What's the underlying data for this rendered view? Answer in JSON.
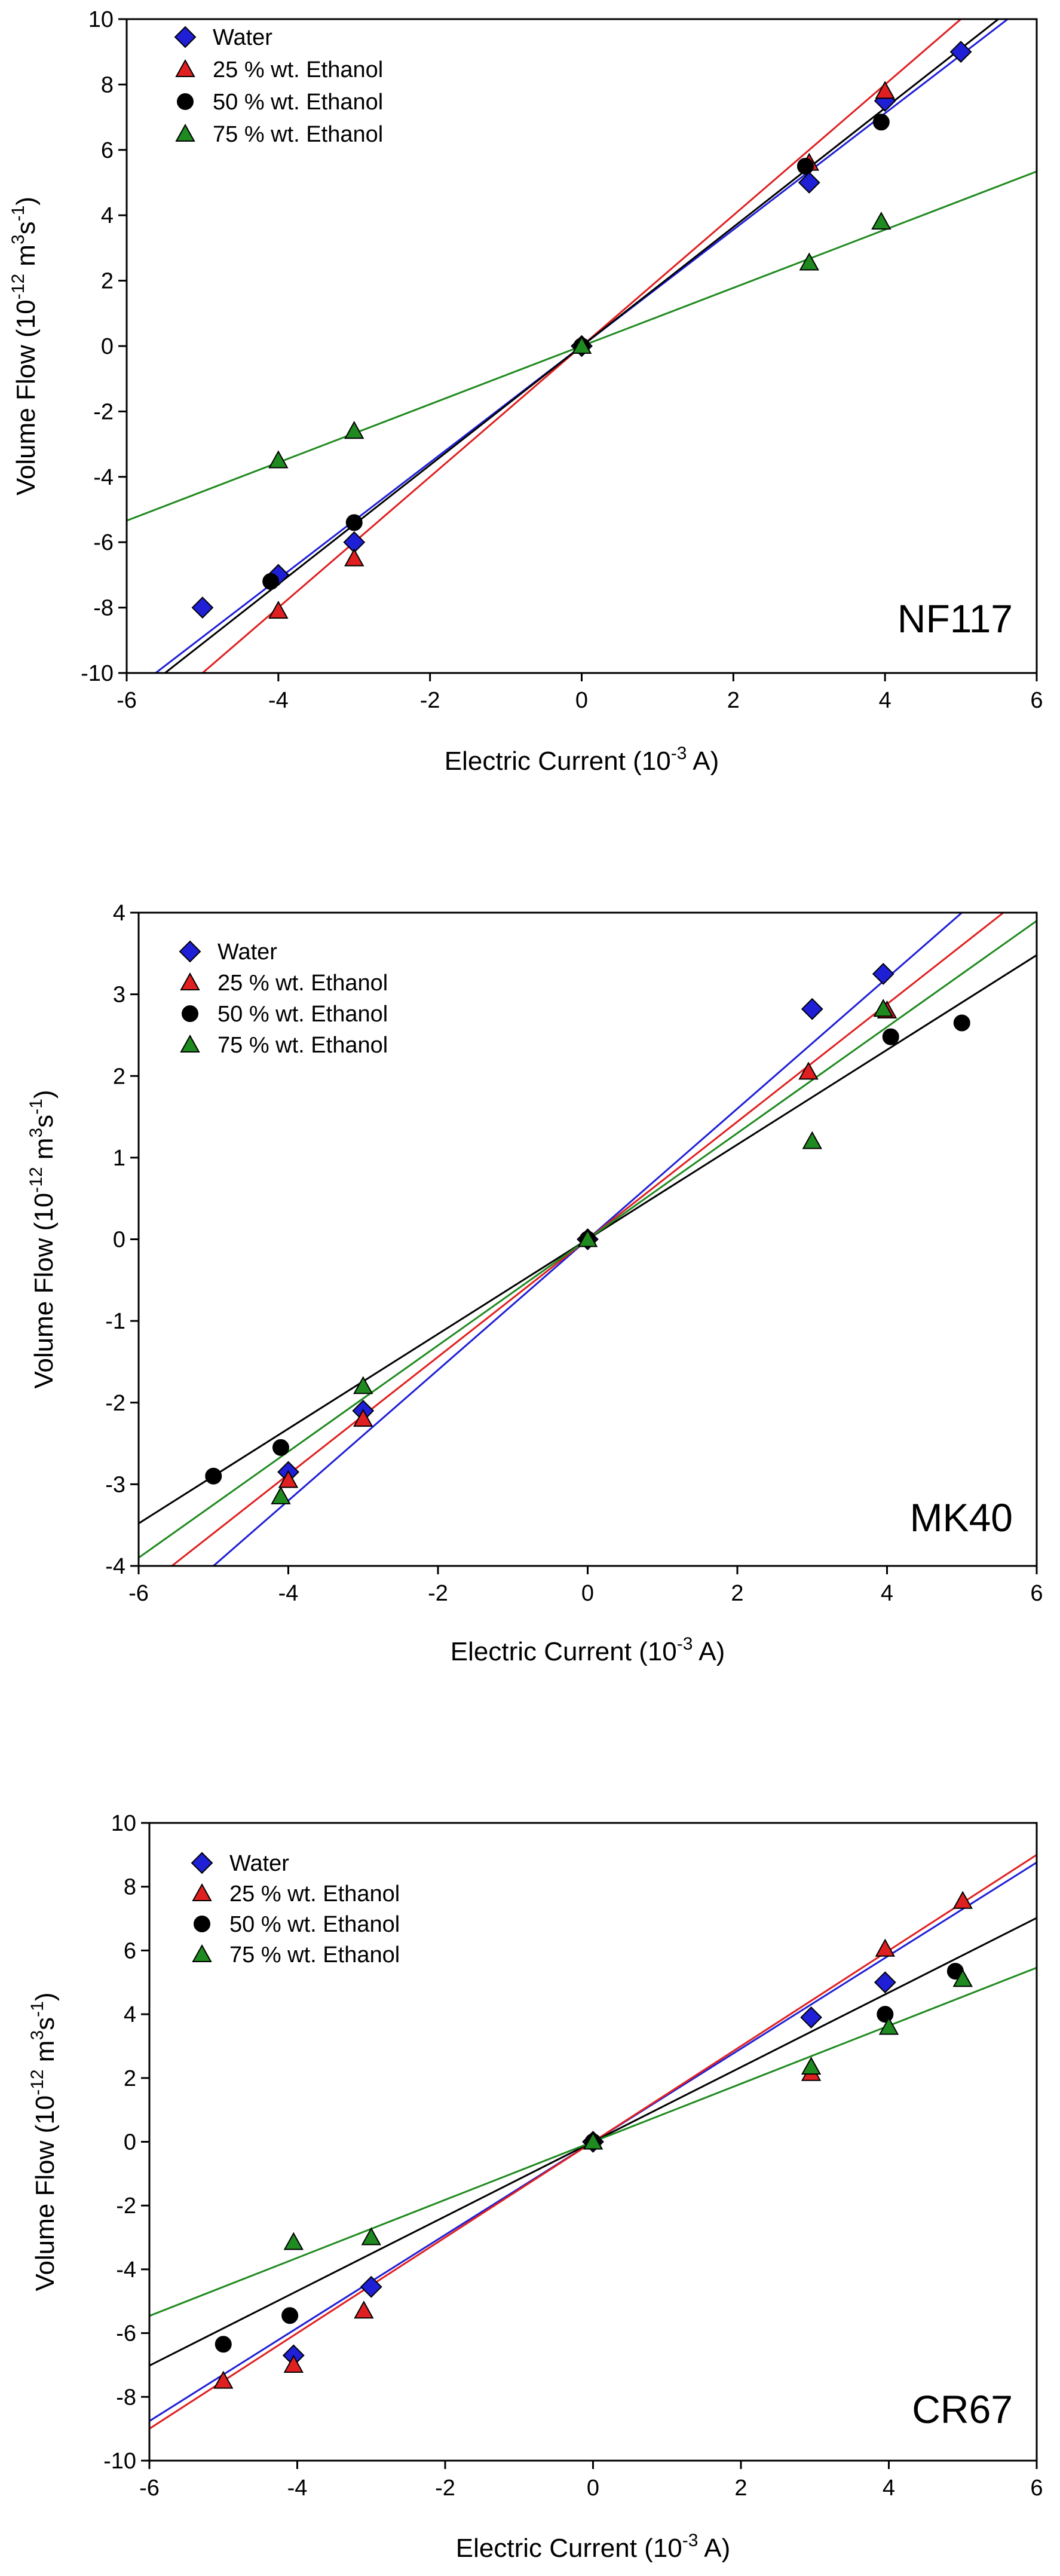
{
  "legend_labels": [
    "Water",
    "25 % wt. Ethanol",
    "50 % wt. Ethanol",
    "75 % wt. Ethanol"
  ],
  "colors": {
    "water": "#1f1fd6",
    "ethanol25": "#e02020",
    "ethanol50": "#000000",
    "ethanol75": "#1f8a1f"
  },
  "chart_data": [
    {
      "type": "scatter",
      "panel_label": "NF117",
      "xlabel": {
        "main": "Electric Current (10",
        "sup": "-3",
        "tail": " A)"
      },
      "ylabel": {
        "main": "Volume Flow (10",
        "sup1": "-12",
        "mid": " m",
        "sup2": "3",
        "mid2": "s",
        "sup3": "-1",
        "tail": ")"
      },
      "xlim": [
        -6,
        6
      ],
      "ylim": [
        -10,
        10
      ],
      "xticks": [
        -6,
        -4,
        -2,
        0,
        2,
        4,
        6
      ],
      "yticks": [
        -10,
        -8,
        -6,
        -4,
        -2,
        0,
        2,
        4,
        6,
        8,
        10
      ],
      "legend_position": "top-left",
      "series": [
        {
          "name": "Water",
          "marker": "diamond",
          "color": "#1f1fd6",
          "slope": 1.78,
          "points": [
            [
              -5,
              -8.0
            ],
            [
              -4,
              -7.0
            ],
            [
              -3,
              -6.0
            ],
            [
              0,
              0
            ],
            [
              3,
              5.0
            ],
            [
              4,
              7.5
            ],
            [
              5,
              9.0
            ]
          ]
        },
        {
          "name": "25 % wt. Ethanol",
          "marker": "triangle",
          "color": "#e02020",
          "slope": 2.0,
          "points": [
            [
              -4,
              -8.1
            ],
            [
              -3,
              -6.5
            ],
            [
              0,
              0
            ],
            [
              3,
              5.6
            ],
            [
              4,
              7.8
            ]
          ]
        },
        {
          "name": "50 % wt. Ethanol",
          "marker": "circle",
          "color": "#000000",
          "slope": 1.82,
          "points": [
            [
              -4.1,
              -7.2
            ],
            [
              -3,
              -5.4
            ],
            [
              0,
              0
            ],
            [
              2.95,
              5.5
            ],
            [
              3.95,
              6.85
            ]
          ]
        },
        {
          "name": "75 % wt. Ethanol",
          "marker": "triangle",
          "color": "#1f8a1f",
          "slope": 0.89,
          "points": [
            [
              -4,
              -3.5
            ],
            [
              -3,
              -2.6
            ],
            [
              0,
              0
            ],
            [
              3,
              2.55
            ],
            [
              3.95,
              3.8
            ]
          ]
        }
      ]
    },
    {
      "type": "scatter",
      "panel_label": "MK40",
      "xlabel": {
        "main": "Electric Current (10",
        "sup": "-3",
        "tail": " A)"
      },
      "ylabel": {
        "main": "Volume Flow (10",
        "sup1": "-12",
        "mid": " m",
        "sup2": "3",
        "mid2": "s",
        "sup3": "-1",
        "tail": ")"
      },
      "xlim": [
        -6,
        6
      ],
      "ylim": [
        -4,
        4
      ],
      "xticks": [
        -6,
        -4,
        -2,
        0,
        2,
        4,
        6
      ],
      "yticks": [
        -4,
        -3,
        -2,
        -1,
        0,
        1,
        2,
        3,
        4
      ],
      "legend_position": "top-left",
      "series": [
        {
          "name": "Water",
          "marker": "diamond",
          "color": "#1f1fd6",
          "slope": 0.8,
          "points": [
            [
              -4,
              -2.85
            ],
            [
              -3,
              -2.1
            ],
            [
              0,
              0
            ],
            [
              3,
              2.82
            ],
            [
              3.95,
              3.25
            ]
          ]
        },
        {
          "name": "25 % wt. Ethanol",
          "marker": "triangle",
          "color": "#e02020",
          "slope": 0.72,
          "points": [
            [
              -4,
              -2.95
            ],
            [
              -3,
              -2.2
            ],
            [
              0,
              0
            ],
            [
              2.95,
              2.05
            ],
            [
              4,
              2.8
            ]
          ]
        },
        {
          "name": "50 % wt. Ethanol",
          "marker": "circle",
          "color": "#000000",
          "slope": 0.58,
          "points": [
            [
              -5,
              -2.9
            ],
            [
              -4.1,
              -2.55
            ],
            [
              0,
              0
            ],
            [
              4.05,
              2.48
            ],
            [
              5,
              2.65
            ]
          ]
        },
        {
          "name": "75 % wt. Ethanol",
          "marker": "triangle",
          "color": "#1f8a1f",
          "slope": 0.65,
          "points": [
            [
              -4.1,
              -3.15
            ],
            [
              -3,
              -1.8
            ],
            [
              0,
              0
            ],
            [
              3,
              1.2
            ],
            [
              3.95,
              2.82
            ]
          ]
        }
      ]
    },
    {
      "type": "scatter",
      "panel_label": "CR67",
      "xlabel": {
        "main": "Electric Current (10",
        "sup": "-3",
        "tail": " A)"
      },
      "ylabel": {
        "main": "Volume Flow (10",
        "sup1": "-12",
        "mid": " m",
        "sup2": "3",
        "mid2": "s",
        "sup3": "-1",
        "tail": ")"
      },
      "xlim": [
        -6,
        6
      ],
      "ylim": [
        -10,
        10
      ],
      "xticks": [
        -6,
        -4,
        -2,
        0,
        2,
        4,
        6
      ],
      "yticks": [
        -10,
        -8,
        -6,
        -4,
        -2,
        0,
        2,
        4,
        6,
        8,
        10
      ],
      "legend_position": "top-left",
      "series": [
        {
          "name": "Water",
          "marker": "diamond",
          "color": "#1f1fd6",
          "slope": 1.46,
          "points": [
            [
              -4.05,
              -6.7
            ],
            [
              -3,
              -4.55
            ],
            [
              0,
              0
            ],
            [
              2.95,
              3.9
            ],
            [
              3.95,
              5.0
            ]
          ]
        },
        {
          "name": "25 % wt. Ethanol",
          "marker": "triangle",
          "color": "#e02020",
          "slope": 1.5,
          "points": [
            [
              -5,
              -7.5
            ],
            [
              -4.05,
              -7.0
            ],
            [
              -3.1,
              -5.3
            ],
            [
              0,
              0
            ],
            [
              2.95,
              2.15
            ],
            [
              3.95,
              6.05
            ],
            [
              5,
              7.55
            ]
          ]
        },
        {
          "name": "50 % wt. Ethanol",
          "marker": "circle",
          "color": "#000000",
          "slope": 1.17,
          "points": [
            [
              -5,
              -6.35
            ],
            [
              -4.1,
              -5.45
            ],
            [
              0,
              0
            ],
            [
              3.95,
              4.0
            ],
            [
              4.9,
              5.35
            ]
          ]
        },
        {
          "name": "75 % wt. Ethanol",
          "marker": "triangle",
          "color": "#1f8a1f",
          "slope": 0.91,
          "points": [
            [
              -4.05,
              -3.15
            ],
            [
              -3,
              -3.0
            ],
            [
              0,
              0
            ],
            [
              2.95,
              2.35
            ],
            [
              4,
              3.6
            ],
            [
              5,
              5.1
            ]
          ]
        }
      ]
    }
  ]
}
